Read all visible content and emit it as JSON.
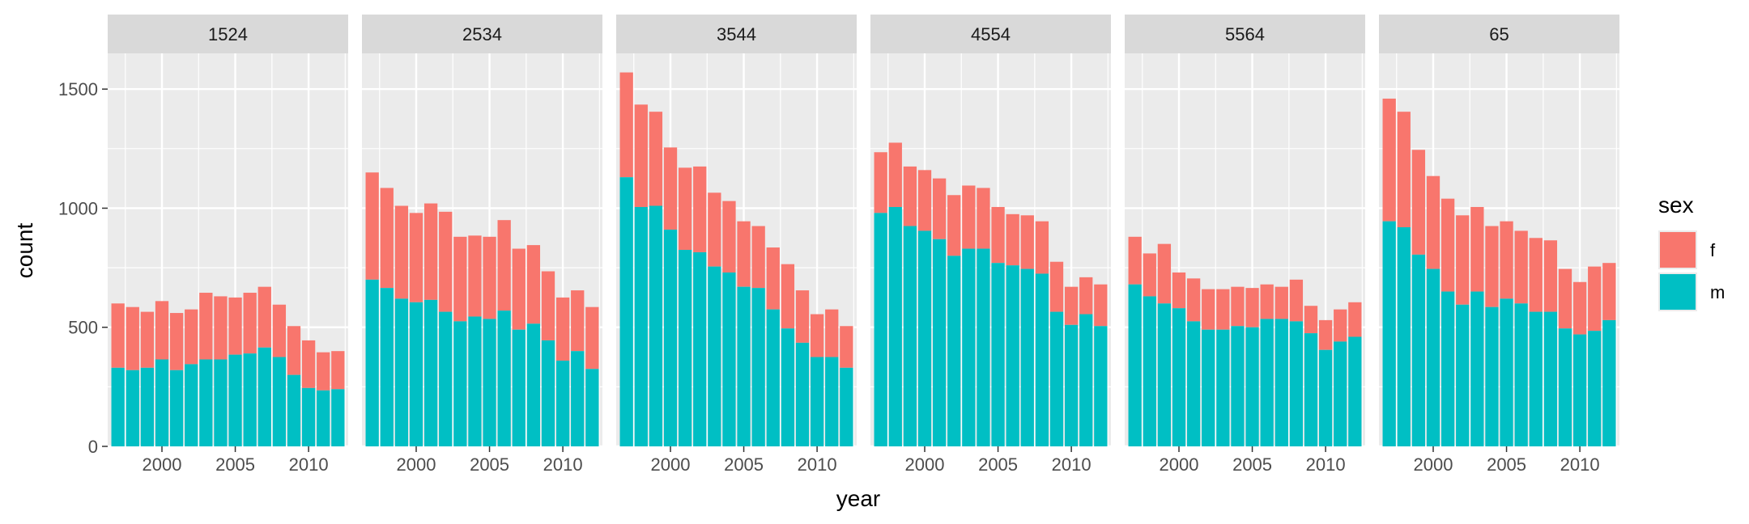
{
  "chart_data": {
    "type": "bar",
    "stacked": true,
    "facet_variable": "age",
    "xlabel": "year",
    "ylabel": "count",
    "x_ticks": [
      2000,
      2005,
      2010
    ],
    "y_ticks": [
      0,
      500,
      1000,
      1500
    ],
    "ylim": [
      0,
      1650
    ],
    "xlim": [
      1996.3,
      2012.7
    ],
    "legend": {
      "title": "sex",
      "position": "right",
      "entries": [
        {
          "key": "f",
          "label": "f",
          "color": "#F8766D"
        },
        {
          "key": "m",
          "label": "m",
          "color": "#00BFC4"
        }
      ]
    },
    "years": [
      1997,
      1998,
      1999,
      2000,
      2001,
      2002,
      2003,
      2004,
      2005,
      2006,
      2007,
      2008,
      2009,
      2010,
      2011,
      2012
    ],
    "panels": [
      {
        "label": "1524",
        "m": [
          330,
          320,
          330,
          365,
          320,
          345,
          365,
          365,
          385,
          390,
          415,
          375,
          300,
          245,
          235,
          240
        ],
        "total": [
          600,
          585,
          565,
          610,
          560,
          575,
          645,
          630,
          625,
          645,
          670,
          595,
          505,
          445,
          395,
          400
        ]
      },
      {
        "label": "2534",
        "m": [
          700,
          665,
          620,
          605,
          615,
          565,
          525,
          545,
          535,
          570,
          490,
          515,
          445,
          360,
          400,
          325
        ],
        "total": [
          1150,
          1085,
          1010,
          980,
          1020,
          985,
          880,
          885,
          880,
          950,
          830,
          845,
          735,
          625,
          655,
          585
        ]
      },
      {
        "label": "3544",
        "m": [
          1130,
          1005,
          1010,
          910,
          825,
          815,
          755,
          730,
          670,
          665,
          575,
          495,
          435,
          375,
          375,
          330
        ],
        "total": [
          1570,
          1435,
          1405,
          1255,
          1170,
          1175,
          1065,
          1030,
          945,
          925,
          835,
          765,
          655,
          555,
          575,
          505
        ]
      },
      {
        "label": "4554",
        "m": [
          980,
          1005,
          925,
          905,
          870,
          800,
          830,
          830,
          770,
          760,
          745,
          725,
          565,
          510,
          555,
          505
        ],
        "total": [
          1235,
          1275,
          1175,
          1160,
          1125,
          1055,
          1095,
          1085,
          1005,
          975,
          970,
          945,
          775,
          670,
          710,
          680
        ]
      },
      {
        "label": "5564",
        "m": [
          680,
          630,
          600,
          580,
          525,
          490,
          490,
          505,
          500,
          535,
          535,
          525,
          475,
          405,
          440,
          460
        ],
        "total": [
          880,
          810,
          850,
          730,
          705,
          660,
          660,
          670,
          665,
          680,
          670,
          700,
          590,
          530,
          575,
          605
        ]
      },
      {
        "label": "65",
        "m": [
          945,
          920,
          805,
          745,
          650,
          595,
          650,
          585,
          620,
          600,
          565,
          565,
          495,
          470,
          485,
          530
        ],
        "total": [
          1460,
          1405,
          1245,
          1135,
          1040,
          970,
          1005,
          925,
          945,
          905,
          875,
          865,
          745,
          690,
          755,
          770
        ]
      }
    ]
  }
}
